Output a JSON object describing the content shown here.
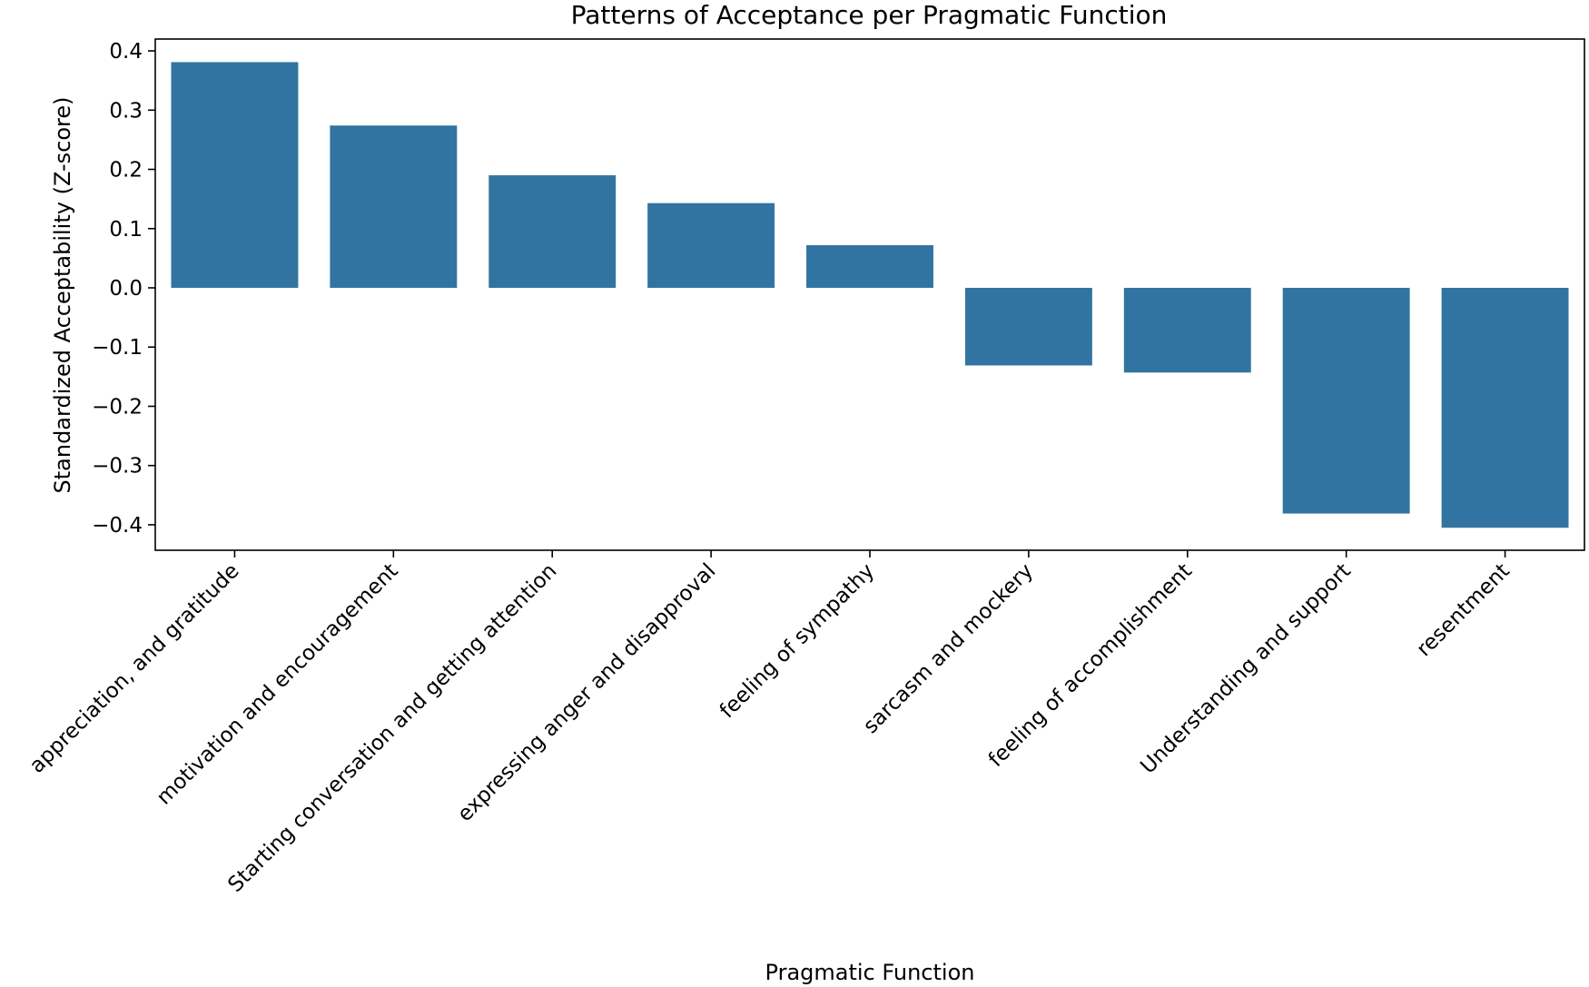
{
  "chart_data": {
    "type": "bar",
    "title": "Patterns of Acceptance per Pragmatic Function",
    "xlabel": "Pragmatic Function",
    "ylabel": "Standardized Acceptability (Z-score)",
    "categories": [
      "appreciation, and gratitude",
      "motivation and encouragement",
      "Starting conversation and getting attention",
      "expressing anger and disapproval",
      "feeling of sympathy",
      "sarcasm and mockery",
      "feeling of accomplishment",
      "Understanding and support",
      "resentment"
    ],
    "values": [
      0.381,
      0.274,
      0.19,
      0.143,
      0.072,
      -0.131,
      -0.143,
      -0.381,
      -0.405
    ],
    "ylim": [
      -0.443,
      0.42
    ],
    "yticks": [
      0.4,
      0.3,
      0.2,
      0.1,
      0.0,
      -0.1,
      -0.2,
      -0.3,
      -0.4
    ],
    "ytick_labels": [
      "0.4",
      "0.3",
      "0.2",
      "0.1",
      "0.0",
      "−0.1",
      "−0.2",
      "−0.3",
      "−0.4"
    ],
    "bar_color": "#3274a1",
    "grid": false,
    "legend": "none"
  }
}
